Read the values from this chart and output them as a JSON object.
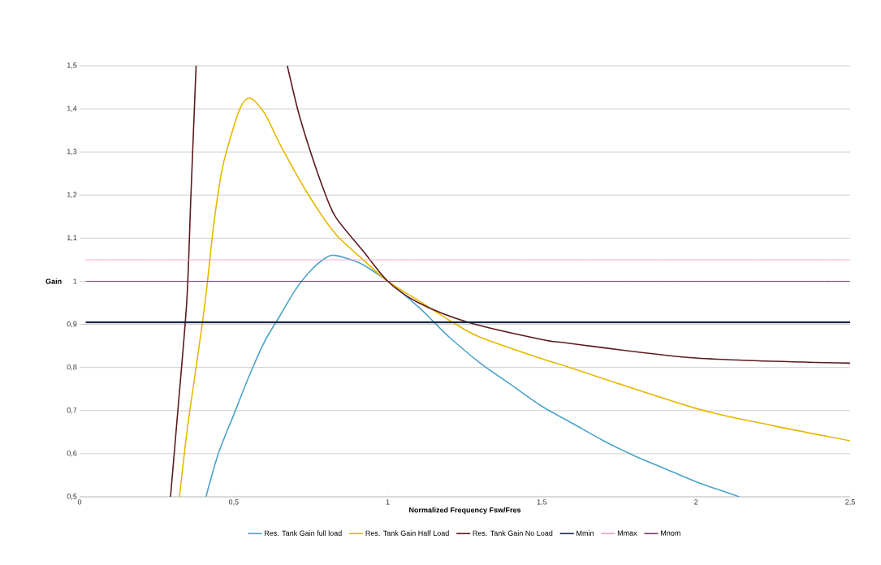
{
  "chart_data": {
    "type": "line",
    "xlabel": "Normalized Frequency Fsw/Fres",
    "ylabel": "Gain",
    "xlim": [
      0,
      2.5
    ],
    "ylim": [
      0.5,
      1.5
    ],
    "xticks": [
      0,
      {
        "value": 0.5,
        "label": "0,5"
      },
      1,
      {
        "value": 1.5,
        "label": "1,5"
      },
      2,
      {
        "value": 2.5,
        "label": "2,5"
      }
    ],
    "yticks": [
      {
        "value": 0.5,
        "label": "0,5"
      },
      {
        "value": 0.6,
        "label": "0,6"
      },
      {
        "value": 0.7,
        "label": "0,7"
      },
      {
        "value": 0.8,
        "label": "0,8"
      },
      {
        "value": 0.9,
        "label": "0,9"
      },
      1,
      {
        "value": 1.1,
        "label": "1,1"
      },
      {
        "value": 1.2,
        "label": "1,2"
      },
      {
        "value": 1.3,
        "label": "1,3"
      },
      {
        "value": 1.4,
        "label": "1,4"
      },
      {
        "value": 1.5,
        "label": "1,5"
      }
    ],
    "grid": "y",
    "legend": "bottom",
    "series": [
      {
        "name": "Res. Tank Gain full load",
        "color": "#4aa3c8",
        "x": [
          0.41,
          0.45,
          0.5,
          0.55,
          0.6,
          0.65,
          0.7,
          0.75,
          0.8,
          0.83,
          0.9,
          0.95,
          1.0,
          1.1,
          1.15,
          1.2,
          1.3,
          1.4,
          1.5,
          1.6,
          1.7,
          1.8,
          1.9,
          2.0,
          2.1,
          2.14
        ],
        "values": [
          0.5,
          0.6,
          0.69,
          0.78,
          0.86,
          0.92,
          0.98,
          1.025,
          1.055,
          1.06,
          1.045,
          1.025,
          1.0,
          0.94,
          0.905,
          0.87,
          0.81,
          0.76,
          0.71,
          0.67,
          0.63,
          0.595,
          0.565,
          0.535,
          0.51,
          0.5
        ]
      },
      {
        "name": "Res. Tank Gain Half Load",
        "color": "#e6b800",
        "x": [
          0.324,
          0.35,
          0.38,
          0.408,
          0.435,
          0.46,
          0.48,
          0.52,
          0.553,
          0.6,
          0.656,
          0.743,
          0.83,
          0.92,
          1.0,
          1.1,
          1.21,
          1.3,
          1.5,
          1.59,
          2.0,
          2.25,
          2.5
        ],
        "values": [
          0.5,
          0.66,
          0.81,
          0.956,
          1.13,
          1.25,
          1.31,
          1.4,
          1.425,
          1.39,
          1.31,
          1.2,
          1.11,
          1.05,
          1.0,
          0.955,
          0.905,
          0.87,
          0.82,
          0.8,
          0.705,
          0.665,
          0.63
        ]
      },
      {
        "name": "Res. Tank Gain No Load",
        "color": "#5c1a1f",
        "x": [
          0.295,
          0.32,
          0.348,
          0.361,
          0.378,
          0.5,
          0.674,
          0.709,
          0.743,
          0.788,
          0.83,
          0.92,
          1.0,
          1.1,
          1.26,
          1.5,
          1.59,
          2.0,
          2.5
        ],
        "values": [
          0.5,
          0.71,
          0.956,
          1.195,
          1.5,
          null,
          1.5,
          1.395,
          1.314,
          1.22,
          1.15,
          1.07,
          1.0,
          0.95,
          0.905,
          0.865,
          0.856,
          0.822,
          0.81
        ]
      },
      {
        "name": "Mmin",
        "color": "#17284a",
        "x": [
          0.02,
          2.5
        ],
        "values": [
          0.905,
          0.905
        ]
      },
      {
        "name": "Mmax",
        "color": "#f29bc8",
        "x": [
          0.02,
          2.5
        ],
        "values": [
          1.05,
          1.05
        ]
      },
      {
        "name": "Mnom",
        "color": "#7a3a6e",
        "x": [
          0.02,
          2.5
        ],
        "values": [
          1.0,
          1.0
        ]
      }
    ]
  }
}
